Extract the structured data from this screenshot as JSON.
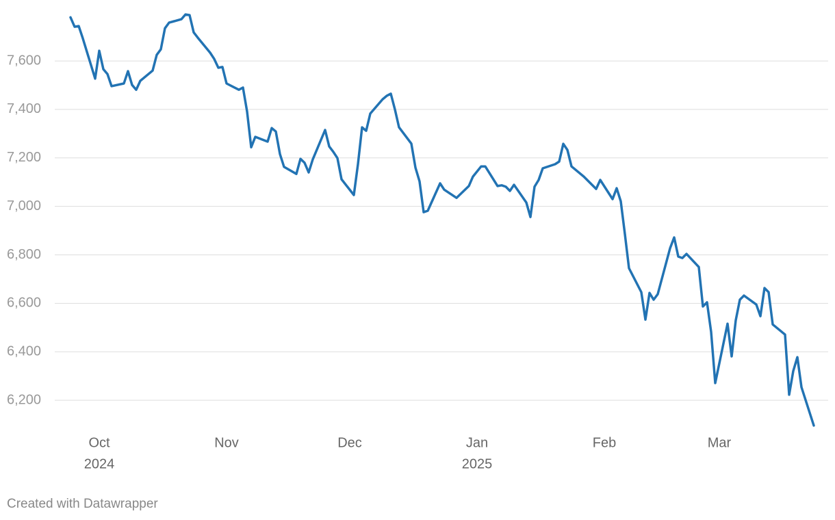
{
  "chart_data": {
    "type": "line",
    "footer": "Created with Datawrapper",
    "x": [
      "2024-09-24",
      "2024-09-25",
      "2024-09-26",
      "2024-09-27",
      "2024-09-30",
      "2024-10-01",
      "2024-10-02",
      "2024-10-03",
      "2024-10-04",
      "2024-10-07",
      "2024-10-08",
      "2024-10-09",
      "2024-10-10",
      "2024-10-11",
      "2024-10-14",
      "2024-10-15",
      "2024-10-16",
      "2024-10-17",
      "2024-10-18",
      "2024-10-21",
      "2024-10-22",
      "2024-10-23",
      "2024-10-24",
      "2024-10-25",
      "2024-10-28",
      "2024-10-29",
      "2024-10-30",
      "2024-10-31",
      "2024-11-01",
      "2024-11-04",
      "2024-11-05",
      "2024-11-06",
      "2024-11-07",
      "2024-11-08",
      "2024-11-11",
      "2024-11-12",
      "2024-11-13",
      "2024-11-14",
      "2024-11-15",
      "2024-11-18",
      "2024-11-19",
      "2024-11-20",
      "2024-11-21",
      "2024-11-22",
      "2024-11-25",
      "2024-11-26",
      "2024-11-27",
      "2024-11-28",
      "2024-11-29",
      "2024-12-02",
      "2024-12-03",
      "2024-12-04",
      "2024-12-05",
      "2024-12-06",
      "2024-12-09",
      "2024-12-10",
      "2024-12-11",
      "2024-12-12",
      "2024-12-13",
      "2024-12-16",
      "2024-12-17",
      "2024-12-18",
      "2024-12-19",
      "2024-12-20",
      "2024-12-23",
      "2024-12-24",
      "2024-12-27",
      "2024-12-30",
      "2024-12-31",
      "2025-01-02",
      "2025-01-03",
      "2025-01-06",
      "2025-01-07",
      "2025-01-08",
      "2025-01-09",
      "2025-01-10",
      "2025-01-13",
      "2025-01-14",
      "2025-01-15",
      "2025-01-16",
      "2025-01-17",
      "2025-01-20",
      "2025-01-21",
      "2025-01-22",
      "2025-01-23",
      "2025-01-24",
      "2025-01-27",
      "2025-01-28",
      "2025-01-29",
      "2025-01-30",
      "2025-01-31",
      "2025-02-03",
      "2025-02-04",
      "2025-02-05",
      "2025-02-06",
      "2025-02-07",
      "2025-02-10",
      "2025-02-11",
      "2025-02-12",
      "2025-02-13",
      "2025-02-14",
      "2025-02-17",
      "2025-02-18",
      "2025-02-19",
      "2025-02-20",
      "2025-02-21",
      "2025-02-24",
      "2025-02-25",
      "2025-02-26",
      "2025-02-27",
      "2025-02-28",
      "2025-03-03",
      "2025-03-04",
      "2025-03-05",
      "2025-03-06",
      "2025-03-07",
      "2025-03-10",
      "2025-03-11",
      "2025-03-12",
      "2025-03-13",
      "2025-03-14",
      "2025-03-17",
      "2025-03-18",
      "2025-03-19",
      "2025-03-20",
      "2025-03-21",
      "2025-03-24"
    ],
    "values": [
      7780,
      7741,
      7744,
      7693,
      7527,
      7642,
      7566,
      7546,
      7496,
      7507,
      7558,
      7501,
      7481,
      7518,
      7560,
      7625,
      7648,
      7735,
      7758,
      7772,
      7792,
      7789,
      7718,
      7696,
      7634,
      7608,
      7572,
      7575,
      7507,
      7481,
      7490,
      7391,
      7244,
      7287,
      7267,
      7323,
      7309,
      7216,
      7163,
      7134,
      7196,
      7180,
      7140,
      7194,
      7315,
      7247,
      7225,
      7199,
      7112,
      7047,
      7174,
      7326,
      7312,
      7383,
      7442,
      7456,
      7465,
      7400,
      7326,
      7259,
      7160,
      7103,
      6976,
      6982,
      7095,
      7069,
      7035,
      7084,
      7123,
      7165,
      7165,
      7084,
      7087,
      7081,
      7064,
      7089,
      7016,
      6956,
      7081,
      7109,
      7157,
      7174,
      7185,
      7258,
      7233,
      7165,
      7123,
      7106,
      7089,
      7072,
      7109,
      7030,
      7075,
      7021,
      6886,
      6745,
      6646,
      6533,
      6643,
      6615,
      6638,
      6827,
      6872,
      6793,
      6787,
      6804,
      6750,
      6587,
      6604,
      6482,
      6271,
      6516,
      6381,
      6530,
      6615,
      6632,
      6595,
      6547,
      6663,
      6646,
      6513,
      6471,
      6223,
      6321,
      6378,
      6254,
      6096
    ],
    "color": "#2273b3",
    "xlim": [
      "2024-09-24",
      "2025-03-24"
    ],
    "xticks": [
      {
        "value": "2024-10-01",
        "label": "Oct",
        "year": "2024"
      },
      {
        "value": "2024-11-01",
        "label": "Nov"
      },
      {
        "value": "2024-12-01",
        "label": "Dec"
      },
      {
        "value": "2025-01-01",
        "label": "Jan",
        "year": "2025"
      },
      {
        "value": "2025-02-01",
        "label": "Feb"
      },
      {
        "value": "2025-03-01",
        "label": "Mar"
      }
    ],
    "ylim": [
      6090,
      7795
    ],
    "yticks": [
      {
        "value": 6200,
        "label": "6,200"
      },
      {
        "value": 6400,
        "label": "6,400"
      },
      {
        "value": 6600,
        "label": "6,600"
      },
      {
        "value": 6800,
        "label": "6,800"
      },
      {
        "value": 7000,
        "label": "7,000"
      },
      {
        "value": 7200,
        "label": "7,200"
      },
      {
        "value": 7400,
        "label": "7,400"
      },
      {
        "value": 7600,
        "label": "7,600"
      }
    ],
    "grid": true
  }
}
